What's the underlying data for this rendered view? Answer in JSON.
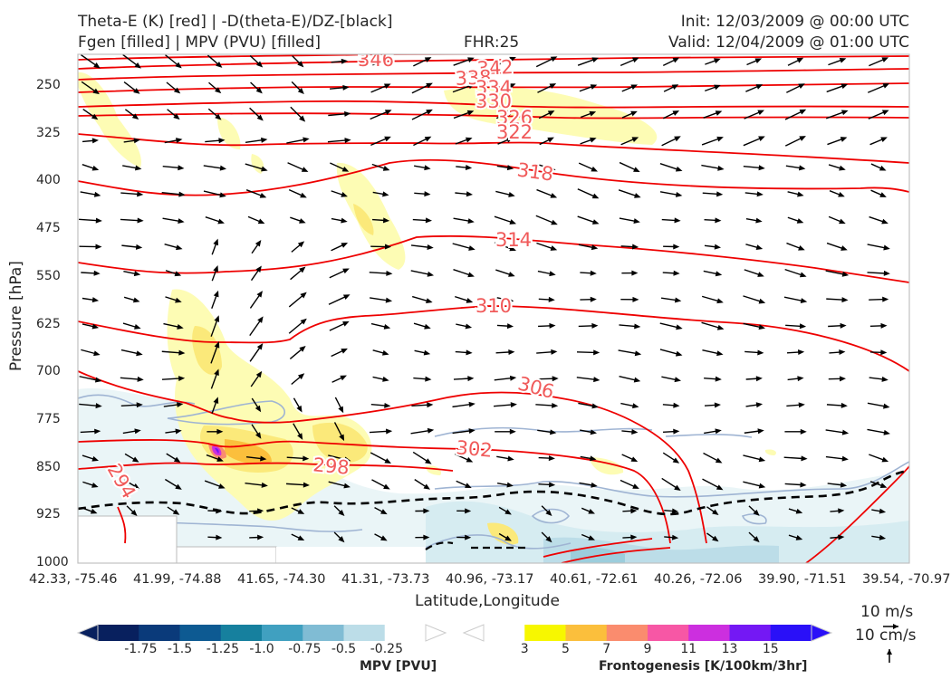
{
  "header": {
    "title_left_1": "Theta-E (K) [red] | -D(theta-E)/DZ-[black]",
    "title_left_2": "Fgen [filled] | MPV (PVU) [filled]",
    "fhr": "FHR:25",
    "init": "Init: 12/03/2009 @ 00:00 UTC",
    "valid": "Valid: 12/04/2009 @ 01:00 UTC"
  },
  "chart_data": {
    "type": "cross-section",
    "xlabel": "Latitude,Longitude",
    "ylabel": "Pressure [hPa]",
    "ylim": [
      1000,
      200
    ],
    "yticks": [
      "250",
      "325",
      "400",
      "475",
      "550",
      "625",
      "700",
      "775",
      "850",
      "925",
      "1000"
    ],
    "xticks": [
      "42.33, -75.46",
      "41.99, -74.88",
      "41.65, -74.30",
      "41.31, -73.73",
      "40.96, -73.17",
      "40.61, -72.61",
      "40.26, -72.06",
      "39.90, -71.51",
      "39.54, -70.97"
    ],
    "theta_e_contours": [
      {
        "value": 346,
        "label": "346"
      },
      {
        "value": 342,
        "label": "342"
      },
      {
        "value": 338,
        "label": "338"
      },
      {
        "value": 334,
        "label": "334"
      },
      {
        "value": 330,
        "label": "330"
      },
      {
        "value": 326,
        "label": "326"
      },
      {
        "value": 322,
        "label": "322"
      },
      {
        "value": 318,
        "label": "318"
      },
      {
        "value": 314,
        "label": "314"
      },
      {
        "value": 310,
        "label": "310"
      },
      {
        "value": 306,
        "label": "306"
      },
      {
        "value": 302,
        "label": "302"
      },
      {
        "value": 298,
        "label": "298"
      },
      {
        "value": 294,
        "label": "294"
      }
    ],
    "wind_reference": {
      "horizontal": "10 m/s",
      "vertical": "10 cm/s"
    },
    "mpv_colorbar": {
      "label": "MPV [PVU]",
      "ticks": [
        "-1.75",
        "-1.5",
        "-1.25",
        "-1.0",
        "-0.75",
        "-0.5",
        "-0.25"
      ],
      "colors": [
        "#08205e",
        "#0a3a7a",
        "#0d5a92",
        "#16809e",
        "#40a0c0",
        "#80bcd4",
        "#bcdde8",
        "#ffffff"
      ]
    },
    "fgen_colorbar": {
      "label": "Frontogenesis [K/100km/3hr]",
      "ticks": [
        "3",
        "5",
        "7",
        "9",
        "11",
        "13",
        "15"
      ],
      "colors": [
        "#ffffff",
        "#f7f700",
        "#fbbf3c",
        "#fa8c6e",
        "#f757a5",
        "#cc2fdf",
        "#7418f4",
        "#2a10f8"
      ]
    }
  }
}
